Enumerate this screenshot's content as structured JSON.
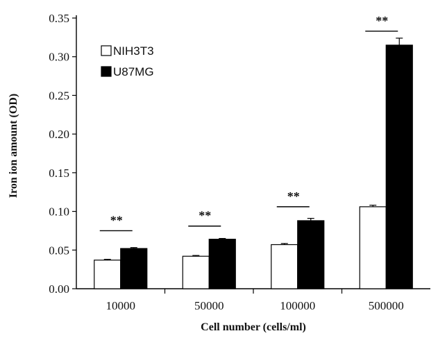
{
  "chart_data": {
    "type": "bar",
    "title": "",
    "xlabel": "Cell number (cells/ml)",
    "ylabel": "Iron ion amount (OD)",
    "categories": [
      "10000",
      "50000",
      "100000",
      "500000"
    ],
    "ylim": [
      0,
      0.35
    ],
    "yticks": [
      "0.00",
      "0.05",
      "0.10",
      "0.15",
      "0.20",
      "0.25",
      "0.30",
      "0.35"
    ],
    "grid": false,
    "legend_position": "top-left",
    "series": [
      {
        "name": "NIH3T3",
        "color": "#ffffff",
        "values": [
          0.037,
          0.042,
          0.057,
          0.106
        ],
        "errors": [
          0.001,
          0.001,
          0.0015,
          0.002
        ]
      },
      {
        "name": "U87MG",
        "color": "#000000",
        "values": [
          0.052,
          0.064,
          0.088,
          0.315
        ],
        "errors": [
          0.0012,
          0.001,
          0.003,
          0.009
        ]
      }
    ],
    "significance": [
      {
        "category": "10000",
        "label": "**",
        "y": 0.075
      },
      {
        "category": "50000",
        "label": "**",
        "y": 0.081
      },
      {
        "category": "100000",
        "label": "**",
        "y": 0.106
      },
      {
        "category": "500000",
        "label": "**",
        "y": 0.333
      }
    ]
  }
}
